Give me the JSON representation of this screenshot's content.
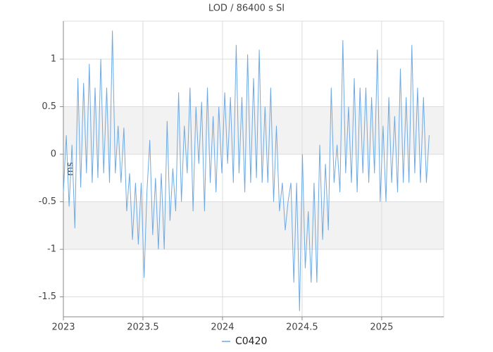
{
  "chart_data": {
    "type": "line",
    "title": "LOD / 86400 s SI",
    "ylabel": "ms",
    "x": [
      2023.0,
      2023.018,
      2023.036,
      2023.054,
      2023.072,
      2023.091,
      2023.109,
      2023.127,
      2023.145,
      2023.163,
      2023.181,
      2023.199,
      2023.217,
      2023.235,
      2023.253,
      2023.272,
      2023.29,
      2023.308,
      2023.326,
      2023.344,
      2023.362,
      2023.38,
      2023.398,
      2023.416,
      2023.434,
      2023.453,
      2023.471,
      2023.489,
      2023.507,
      2023.525,
      2023.543,
      2023.561,
      2023.579,
      2023.597,
      2023.615,
      2023.634,
      2023.652,
      2023.67,
      2023.688,
      2023.706,
      2023.724,
      2023.742,
      2023.76,
      2023.778,
      2023.796,
      2023.815,
      2023.833,
      2023.851,
      2023.869,
      2023.887,
      2023.905,
      2023.923,
      2023.941,
      2023.959,
      2023.977,
      2023.996,
      2024.014,
      2024.032,
      2024.05,
      2024.068,
      2024.086,
      2024.104,
      2024.122,
      2024.14,
      2024.158,
      2024.177,
      2024.195,
      2024.213,
      2024.231,
      2024.249,
      2024.267,
      2024.285,
      2024.303,
      2024.321,
      2024.339,
      2024.358,
      2024.376,
      2024.394,
      2024.412,
      2024.43,
      2024.448,
      2024.466,
      2024.484,
      2024.502,
      2024.52,
      2024.539,
      2024.557,
      2024.575,
      2024.593,
      2024.611,
      2024.629,
      2024.647,
      2024.665,
      2024.683,
      2024.701,
      2024.72,
      2024.738,
      2024.756,
      2024.774,
      2024.792,
      2024.81,
      2024.828,
      2024.846,
      2024.864,
      2024.882,
      2024.901,
      2024.919,
      2024.937,
      2024.955,
      2024.973,
      2024.991,
      2025.009,
      2025.027,
      2025.045,
      2025.063,
      2025.082,
      2025.1,
      2025.118,
      2025.136,
      2025.154,
      2025.172,
      2025.19,
      2025.208,
      2025.226,
      2025.244,
      2025.263,
      2025.281,
      2025.299
    ],
    "series": [
      {
        "name": "C0420",
        "color": "#6fa9e3",
        "values": [
          -0.4,
          0.2,
          -0.55,
          0.1,
          -0.78,
          0.8,
          -0.35,
          0.75,
          -0.2,
          0.95,
          -0.3,
          0.7,
          -0.25,
          1.0,
          -0.2,
          0.7,
          -0.3,
          1.3,
          -0.2,
          0.3,
          -0.3,
          0.28,
          -0.6,
          -0.2,
          -0.9,
          -0.3,
          -0.95,
          -0.3,
          -1.3,
          -0.4,
          0.15,
          -0.85,
          -0.25,
          -1.0,
          -0.2,
          -1.0,
          0.35,
          -0.7,
          -0.15,
          -0.6,
          0.65,
          -0.5,
          0.3,
          -0.2,
          0.7,
          -0.6,
          0.5,
          -0.1,
          0.55,
          -0.6,
          0.7,
          -0.3,
          0.4,
          -0.4,
          0.5,
          -0.2,
          0.65,
          -0.1,
          0.6,
          -0.3,
          1.15,
          -0.2,
          0.6,
          -0.4,
          1.05,
          -0.3,
          0.8,
          -0.25,
          1.1,
          -0.3,
          0.5,
          -0.3,
          0.7,
          -0.5,
          0.3,
          -0.6,
          -0.3,
          -0.8,
          -0.5,
          -0.3,
          -1.35,
          -0.3,
          -1.65,
          0.0,
          -1.2,
          -0.6,
          -1.35,
          -0.3,
          -1.35,
          0.1,
          -0.9,
          -0.1,
          -0.8,
          0.7,
          -0.3,
          0.1,
          -0.4,
          1.2,
          -0.2,
          0.5,
          -0.3,
          0.8,
          -0.4,
          0.7,
          -0.2,
          0.7,
          -0.3,
          0.6,
          -0.2,
          1.1,
          -0.5,
          0.3,
          -0.5,
          0.6,
          -0.3,
          0.4,
          -0.4,
          0.9,
          -0.3,
          0.6,
          -0.3,
          1.15,
          -0.2,
          0.7,
          -0.3,
          0.6,
          -0.3,
          0.2
        ]
      }
    ],
    "xlim": [
      2023,
      2025.39
    ],
    "xticks": [
      2023,
      2023.5,
      2024,
      2024.5,
      2025
    ],
    "ylim": [
      -1.71,
      1.4
    ],
    "yticks": [
      -1.5,
      -1,
      -0.5,
      0,
      0.5,
      1
    ],
    "grid": true,
    "legend": "bottom"
  }
}
